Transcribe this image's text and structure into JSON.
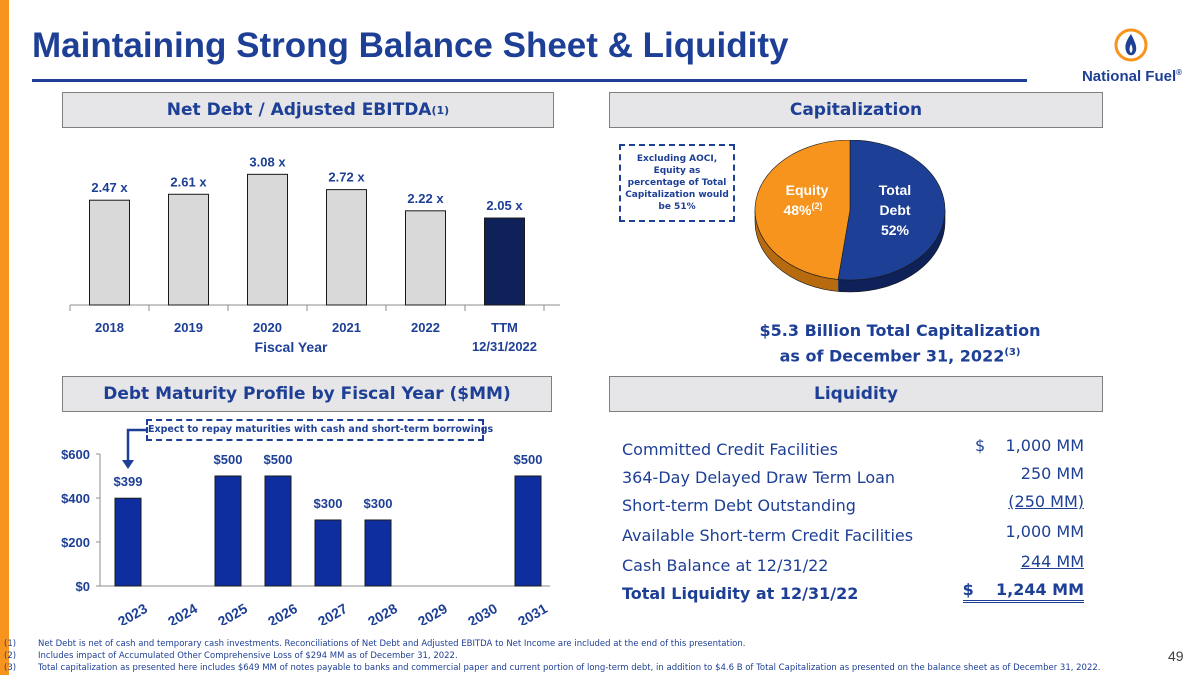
{
  "page": {
    "title": "Maintaining Strong Balance Sheet & Liquidity",
    "page_number": "49"
  },
  "brand": {
    "name": "National Fuel",
    "trademark": "®",
    "primary_color": "#1d3f95",
    "accent_color": "#f7941d"
  },
  "net_debt": {
    "header": "Net Debt / Adjusted EBITDA",
    "header_sup": "(1)",
    "fiscal_year_label": "Fiscal Year"
  },
  "capitalization": {
    "header": "Capitalization",
    "aoci_note": "Excluding AOCI, Equity as percentage of Total Capitalization would be 51%",
    "total_line1": "$5.3 Billion Total Capitalization",
    "total_line2": "as of December 31, 2022",
    "total_sup": "(3)"
  },
  "debt_maturity": {
    "header": "Debt Maturity Profile by Fiscal Year ($MM)",
    "callout": "Expect to repay maturities with cash and short-term borrowings"
  },
  "liquidity": {
    "header": "Liquidity",
    "rows": [
      {
        "label": "Committed Credit Facilities",
        "value": "$    1,000 MM"
      },
      {
        "label": "364-Day Delayed Draw Term Loan",
        "value": "250 MM"
      },
      {
        "label": "Short-term Debt Outstanding",
        "value": "(250 MM)"
      },
      {
        "label": "Available Short-term Credit Facilities",
        "value": "1,000 MM"
      },
      {
        "label": "Cash Balance at 12/31/22",
        "value": "244 MM"
      },
      {
        "label": "Total Liquidity at 12/31/22",
        "value": "$    1,244 MM"
      }
    ]
  },
  "footnotes": [
    {
      "num": "(1)",
      "text": "Net Debt is net of cash and temporary cash investments.  Reconciliations of Net Debt and Adjusted EBITDA to Net Income are included at the end of this presentation."
    },
    {
      "num": "(2)",
      "text": "Includes impact of Accumulated Other Comprehensive Loss of $294 MM as of December 31, 2022."
    },
    {
      "num": "(3)",
      "text": "Total capitalization as presented here includes $649 MM of notes payable to banks and commercial paper and current portion of long-term debt, in addition to $4.6 B of Total Capitalization as presented on the balance sheet as of December 31, 2022."
    }
  ],
  "chart_data": [
    {
      "type": "bar",
      "title": "Net Debt / Adjusted EBITDA",
      "categories": [
        "2018",
        "2019",
        "2020",
        "2021",
        "2022",
        "TTM\n12/31/2022"
      ],
      "values": [
        2.47,
        2.61,
        3.08,
        2.72,
        2.22,
        2.05
      ],
      "data_labels": [
        "2.47 x",
        "2.61 x",
        "3.08 x",
        "2.72 x",
        "2.22 x",
        "2.05 x"
      ],
      "bar_colors": [
        "#d9d9d9",
        "#d9d9d9",
        "#d9d9d9",
        "#d9d9d9",
        "#d9d9d9",
        "#0e2158"
      ],
      "xlabel": "Fiscal Year",
      "ylabel": "",
      "ylim": [
        0,
        3.3
      ],
      "grid": false
    },
    {
      "type": "pie",
      "title": "Capitalization",
      "slices": [
        {
          "name": "Total Debt",
          "value": 52,
          "label_lines": [
            "Total",
            "Debt",
            "52%"
          ],
          "color": "#1d3f95"
        },
        {
          "name": "Equity",
          "value": 48,
          "label_lines": [
            "Equity",
            "48%"
          ],
          "label_sup": "(2)",
          "color": "#f7941d"
        }
      ]
    },
    {
      "type": "bar",
      "title": "Debt Maturity Profile by Fiscal Year ($MM)",
      "categories": [
        "2023",
        "2024",
        "2025",
        "2026",
        "2027",
        "2028",
        "2029",
        "2030",
        "2031"
      ],
      "values": [
        399,
        0,
        500,
        500,
        300,
        300,
        0,
        0,
        500
      ],
      "data_labels": [
        "$399",
        "",
        "$500",
        "$500",
        "$300",
        "$300",
        "",
        "",
        "$500"
      ],
      "yticks": [
        0,
        200,
        400,
        600
      ],
      "ytick_labels": [
        "$0",
        "$200",
        "$400",
        "$600"
      ],
      "ylim": [
        0,
        600
      ],
      "bar_color": "#0e2ea0",
      "grid": false
    }
  ]
}
